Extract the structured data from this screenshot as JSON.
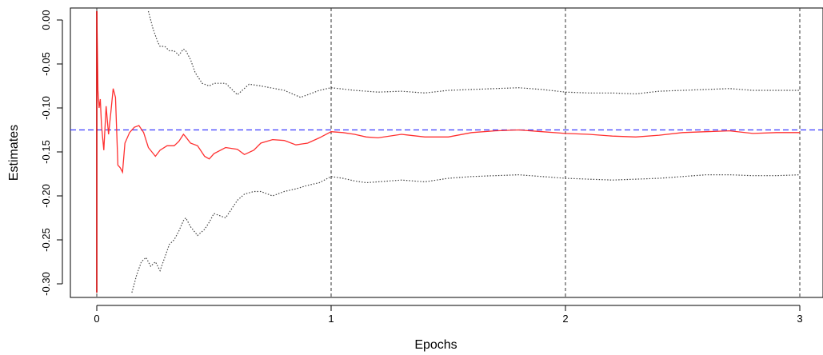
{
  "chart_data": {
    "type": "line",
    "xlabel": "Epochs",
    "ylabel": "Estimates",
    "xlim": [
      -0.1,
      3.05
    ],
    "ylim": [
      -0.31,
      0.01
    ],
    "x_ticks": [
      0,
      1,
      2,
      3
    ],
    "y_ticks": [
      0.0,
      -0.05,
      -0.1,
      -0.15,
      -0.2,
      -0.25,
      -0.3
    ],
    "x_tick_labels": [
      "0",
      "1",
      "2",
      "3"
    ],
    "y_tick_labels": [
      "0.00",
      "-0.05",
      "-0.10",
      "-0.15",
      "-0.20",
      "-0.25",
      "-0.30"
    ],
    "vertical_reference_lines": [
      0,
      1,
      2,
      3
    ],
    "horizontal_reference_line": -0.125,
    "grid": false,
    "colors": {
      "estimate": "#ff3030",
      "bounds": "#444444",
      "reference": "#3b3bff",
      "epoch_line": "#333333",
      "zero_line": "#cc0000"
    },
    "series": [
      {
        "style": "solid",
        "x": [
          0.0,
          0.005,
          0.01,
          0.015,
          0.02,
          0.03,
          0.04,
          0.05,
          0.06,
          0.07,
          0.08,
          0.09,
          0.1,
          0.11,
          0.12,
          0.14,
          0.16,
          0.18,
          0.2,
          0.22,
          0.25,
          0.27,
          0.3,
          0.33,
          0.35,
          0.37,
          0.38,
          0.4,
          0.43,
          0.46,
          0.48,
          0.5,
          0.55,
          0.6,
          0.63,
          0.67,
          0.7,
          0.75,
          0.8,
          0.85,
          0.9,
          0.95,
          1.0,
          1.05,
          1.1,
          1.15,
          1.2,
          1.3,
          1.4,
          1.5,
          1.6,
          1.7,
          1.8,
          1.9,
          2.0,
          2.1,
          2.2,
          2.3,
          2.4,
          2.5,
          2.6,
          2.7,
          2.8,
          2.9,
          3.0
        ],
        "y": [
          0.01,
          -0.08,
          -0.1,
          -0.09,
          -0.12,
          -0.148,
          -0.098,
          -0.13,
          -0.105,
          -0.078,
          -0.088,
          -0.165,
          -0.168,
          -0.173,
          -0.14,
          -0.128,
          -0.122,
          -0.12,
          -0.128,
          -0.145,
          -0.155,
          -0.148,
          -0.143,
          -0.143,
          -0.138,
          -0.13,
          -0.133,
          -0.14,
          -0.143,
          -0.155,
          -0.158,
          -0.152,
          -0.145,
          -0.147,
          -0.153,
          -0.148,
          -0.14,
          -0.136,
          -0.137,
          -0.142,
          -0.14,
          -0.134,
          -0.127,
          -0.128,
          -0.13,
          -0.133,
          -0.134,
          -0.13,
          -0.133,
          -0.133,
          -0.128,
          -0.126,
          -0.125,
          -0.127,
          -0.129,
          -0.13,
          -0.132,
          -0.133,
          -0.131,
          -0.128,
          -0.127,
          -0.126,
          -0.129,
          -0.128,
          -0.128
        ]
      },
      {
        "style": "dotted",
        "x": [
          0.22,
          0.24,
          0.26,
          0.27,
          0.29,
          0.31,
          0.33,
          0.35,
          0.37,
          0.38,
          0.4,
          0.42,
          0.45,
          0.48,
          0.5,
          0.55,
          0.6,
          0.65,
          0.7,
          0.8,
          0.87,
          0.9,
          0.95,
          1.0,
          1.1,
          1.2,
          1.3,
          1.4,
          1.5,
          1.6,
          1.7,
          1.8,
          1.9,
          2.0,
          2.1,
          2.2,
          2.3,
          2.4,
          2.5,
          2.6,
          2.7,
          2.8,
          2.9,
          3.0
        ],
        "y": [
          0.01,
          -0.01,
          -0.025,
          -0.03,
          -0.03,
          -0.035,
          -0.035,
          -0.04,
          -0.033,
          -0.035,
          -0.045,
          -0.06,
          -0.072,
          -0.075,
          -0.072,
          -0.072,
          -0.085,
          -0.073,
          -0.075,
          -0.08,
          -0.088,
          -0.085,
          -0.08,
          -0.077,
          -0.08,
          -0.082,
          -0.081,
          -0.083,
          -0.08,
          -0.079,
          -0.078,
          -0.077,
          -0.079,
          -0.082,
          -0.083,
          -0.083,
          -0.084,
          -0.081,
          -0.08,
          -0.079,
          -0.078,
          -0.08,
          -0.08,
          -0.08
        ]
      },
      {
        "style": "dotted",
        "x": [
          0.15,
          0.17,
          0.19,
          0.21,
          0.23,
          0.25,
          0.27,
          0.29,
          0.31,
          0.33,
          0.35,
          0.37,
          0.38,
          0.4,
          0.43,
          0.46,
          0.48,
          0.5,
          0.55,
          0.6,
          0.63,
          0.67,
          0.7,
          0.75,
          0.8,
          0.85,
          0.9,
          0.95,
          1.0,
          1.05,
          1.1,
          1.15,
          1.2,
          1.3,
          1.4,
          1.5,
          1.6,
          1.7,
          1.8,
          1.9,
          2.0,
          2.1,
          2.2,
          2.3,
          2.4,
          2.5,
          2.6,
          2.7,
          2.8,
          2.9,
          3.0
        ],
        "y": [
          -0.31,
          -0.29,
          -0.275,
          -0.27,
          -0.28,
          -0.275,
          -0.285,
          -0.27,
          -0.255,
          -0.25,
          -0.24,
          -0.228,
          -0.225,
          -0.235,
          -0.245,
          -0.238,
          -0.23,
          -0.22,
          -0.225,
          -0.205,
          -0.198,
          -0.195,
          -0.195,
          -0.2,
          -0.195,
          -0.192,
          -0.188,
          -0.185,
          -0.178,
          -0.18,
          -0.183,
          -0.185,
          -0.184,
          -0.182,
          -0.184,
          -0.18,
          -0.178,
          -0.177,
          -0.176,
          -0.178,
          -0.18,
          -0.181,
          -0.182,
          -0.181,
          -0.18,
          -0.178,
          -0.176,
          -0.176,
          -0.177,
          -0.177,
          -0.176
        ]
      },
      {
        "style": "solid-thin",
        "x": [
          0.0,
          0.0
        ],
        "y": [
          0.01,
          -0.31
        ]
      }
    ]
  }
}
